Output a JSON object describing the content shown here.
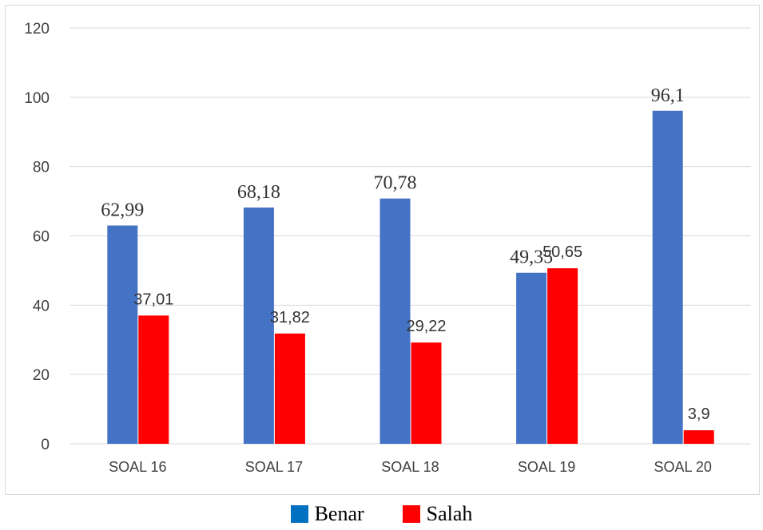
{
  "chart_data": {
    "type": "bar",
    "categories": [
      "SOAL 16",
      "SOAL 17",
      "SOAL 18",
      "SOAL 19",
      "SOAL 20"
    ],
    "series": [
      {
        "name": "Benar",
        "values": [
          62.99,
          68.18,
          70.78,
          49.35,
          96.1
        ],
        "labels": [
          "62,99",
          "68,18",
          "70,78",
          "49,35",
          "96,1"
        ],
        "color": "#4472c4"
      },
      {
        "name": "Salah",
        "values": [
          37.01,
          31.82,
          29.22,
          50.65,
          3.9
        ],
        "labels": [
          "37,01",
          "31,82",
          "29,22",
          "50,65",
          "3,9"
        ],
        "color": "#ff0000"
      }
    ],
    "y_ticks": [
      "0",
      "20",
      "40",
      "60",
      "80",
      "100",
      "120"
    ],
    "ylim": [
      0,
      120
    ],
    "grid": true,
    "legend_position": "bottom"
  },
  "legend": {
    "benar_label": "Benar",
    "benar_color": "#0070c0",
    "salah_label": "Salah",
    "salah_color": "#ff0000"
  }
}
